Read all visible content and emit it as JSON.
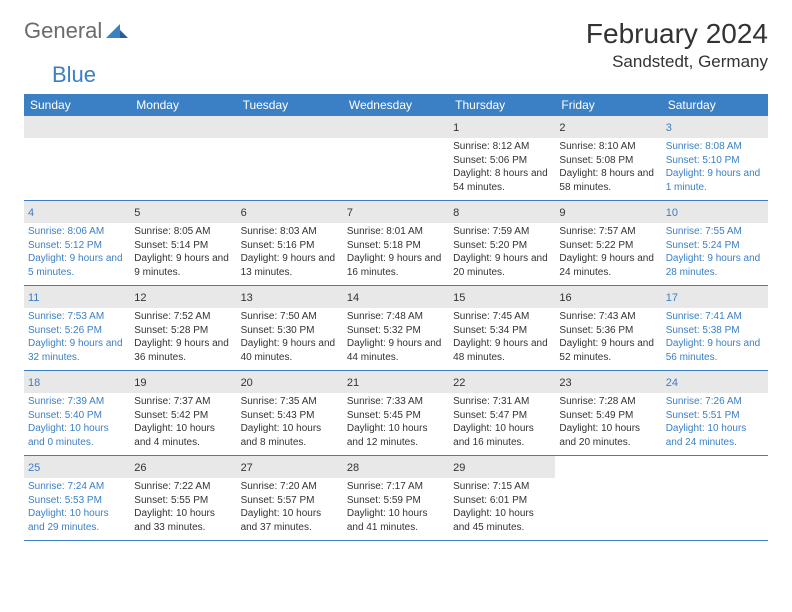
{
  "logo": {
    "part1": "General",
    "part2": "Blue"
  },
  "title": "February 2024",
  "location": "Sandstedt, Germany",
  "accent_color": "#3b7fc4",
  "daynum_bg": "#e8e8e8",
  "day_headers": [
    "Sunday",
    "Monday",
    "Tuesday",
    "Wednesday",
    "Thursday",
    "Friday",
    "Saturday"
  ],
  "weeks": [
    [
      null,
      null,
      null,
      null,
      {
        "n": "1",
        "sr": "8:12 AM",
        "ss": "5:06 PM",
        "dl": "8 hours and 54 minutes."
      },
      {
        "n": "2",
        "sr": "8:10 AM",
        "ss": "5:08 PM",
        "dl": "8 hours and 58 minutes."
      },
      {
        "n": "3",
        "sr": "8:08 AM",
        "ss": "5:10 PM",
        "dl": "9 hours and 1 minute."
      }
    ],
    [
      {
        "n": "4",
        "sr": "8:06 AM",
        "ss": "5:12 PM",
        "dl": "9 hours and 5 minutes."
      },
      {
        "n": "5",
        "sr": "8:05 AM",
        "ss": "5:14 PM",
        "dl": "9 hours and 9 minutes."
      },
      {
        "n": "6",
        "sr": "8:03 AM",
        "ss": "5:16 PM",
        "dl": "9 hours and 13 minutes."
      },
      {
        "n": "7",
        "sr": "8:01 AM",
        "ss": "5:18 PM",
        "dl": "9 hours and 16 minutes."
      },
      {
        "n": "8",
        "sr": "7:59 AM",
        "ss": "5:20 PM",
        "dl": "9 hours and 20 minutes."
      },
      {
        "n": "9",
        "sr": "7:57 AM",
        "ss": "5:22 PM",
        "dl": "9 hours and 24 minutes."
      },
      {
        "n": "10",
        "sr": "7:55 AM",
        "ss": "5:24 PM",
        "dl": "9 hours and 28 minutes."
      }
    ],
    [
      {
        "n": "11",
        "sr": "7:53 AM",
        "ss": "5:26 PM",
        "dl": "9 hours and 32 minutes."
      },
      {
        "n": "12",
        "sr": "7:52 AM",
        "ss": "5:28 PM",
        "dl": "9 hours and 36 minutes."
      },
      {
        "n": "13",
        "sr": "7:50 AM",
        "ss": "5:30 PM",
        "dl": "9 hours and 40 minutes."
      },
      {
        "n": "14",
        "sr": "7:48 AM",
        "ss": "5:32 PM",
        "dl": "9 hours and 44 minutes."
      },
      {
        "n": "15",
        "sr": "7:45 AM",
        "ss": "5:34 PM",
        "dl": "9 hours and 48 minutes."
      },
      {
        "n": "16",
        "sr": "7:43 AM",
        "ss": "5:36 PM",
        "dl": "9 hours and 52 minutes."
      },
      {
        "n": "17",
        "sr": "7:41 AM",
        "ss": "5:38 PM",
        "dl": "9 hours and 56 minutes."
      }
    ],
    [
      {
        "n": "18",
        "sr": "7:39 AM",
        "ss": "5:40 PM",
        "dl": "10 hours and 0 minutes."
      },
      {
        "n": "19",
        "sr": "7:37 AM",
        "ss": "5:42 PM",
        "dl": "10 hours and 4 minutes."
      },
      {
        "n": "20",
        "sr": "7:35 AM",
        "ss": "5:43 PM",
        "dl": "10 hours and 8 minutes."
      },
      {
        "n": "21",
        "sr": "7:33 AM",
        "ss": "5:45 PM",
        "dl": "10 hours and 12 minutes."
      },
      {
        "n": "22",
        "sr": "7:31 AM",
        "ss": "5:47 PM",
        "dl": "10 hours and 16 minutes."
      },
      {
        "n": "23",
        "sr": "7:28 AM",
        "ss": "5:49 PM",
        "dl": "10 hours and 20 minutes."
      },
      {
        "n": "24",
        "sr": "7:26 AM",
        "ss": "5:51 PM",
        "dl": "10 hours and 24 minutes."
      }
    ],
    [
      {
        "n": "25",
        "sr": "7:24 AM",
        "ss": "5:53 PM",
        "dl": "10 hours and 29 minutes."
      },
      {
        "n": "26",
        "sr": "7:22 AM",
        "ss": "5:55 PM",
        "dl": "10 hours and 33 minutes."
      },
      {
        "n": "27",
        "sr": "7:20 AM",
        "ss": "5:57 PM",
        "dl": "10 hours and 37 minutes."
      },
      {
        "n": "28",
        "sr": "7:17 AM",
        "ss": "5:59 PM",
        "dl": "10 hours and 41 minutes."
      },
      {
        "n": "29",
        "sr": "7:15 AM",
        "ss": "6:01 PM",
        "dl": "10 hours and 45 minutes."
      },
      null,
      null
    ]
  ],
  "labels": {
    "sunrise": "Sunrise:",
    "sunset": "Sunset:",
    "daylight": "Daylight:"
  }
}
